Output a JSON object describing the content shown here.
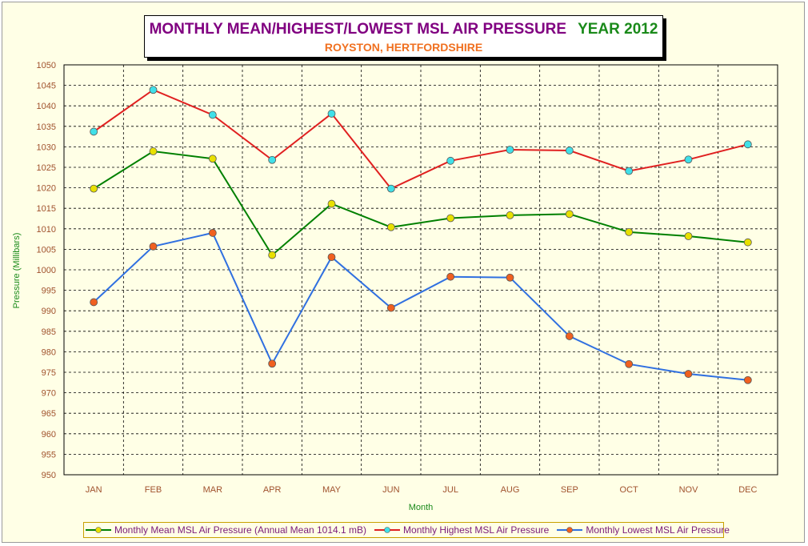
{
  "title": {
    "main": "MONTHLY MEAN/HIGHEST/LOWEST MSL AIR PRESSURE",
    "year": "YEAR 2012",
    "subtitle": "ROYSTON, HERTFORDSHIRE"
  },
  "colors": {
    "background": "#ffffe6",
    "grid": "#000000",
    "tick_label": "#a0522d",
    "axis_title": "#1a8a1a",
    "mean_line": "#008000",
    "highest_line": "#e02020",
    "lowest_line": "#3070e0",
    "mean_marker": "#e8e000",
    "highest_marker": "#40e0e8",
    "lowest_marker": "#f06020"
  },
  "chart_data": {
    "type": "line",
    "title": "MONTHLY MEAN/HIGHEST/LOWEST MSL AIR PRESSURE  YEAR 2012",
    "subtitle": "ROYSTON, HERTFORDSHIRE",
    "xlabel": "Month",
    "ylabel": "Pressure (Millibars)",
    "ylim": [
      950,
      1050
    ],
    "ytick_step": 5,
    "grid": true,
    "legend_position": "bottom",
    "categories": [
      "JAN",
      "FEB",
      "MAR",
      "APR",
      "MAY",
      "JUN",
      "JUL",
      "AUG",
      "SEP",
      "OCT",
      "NOV",
      "DEC"
    ],
    "series": [
      {
        "name": "Monthly Mean MSL Air Pressure (Annual Mean 1014.1 mB)",
        "values": [
          1019.8,
          1028.9,
          1027.1,
          1003.6,
          1016.1,
          1010.4,
          1012.6,
          1013.3,
          1013.6,
          1009.2,
          1008.2,
          1006.7
        ]
      },
      {
        "name": "Monthly Highest MSL Air Pressure",
        "values": [
          1033.7,
          1043.9,
          1037.8,
          1026.8,
          1038.1,
          1019.8,
          1026.6,
          1029.3,
          1029.1,
          1024.1,
          1026.9,
          1030.6
        ]
      },
      {
        "name": "Monthly Lowest  MSL Air Pressure",
        "values": [
          992.1,
          1005.7,
          1009.0,
          977.1,
          1003.1,
          990.7,
          998.3,
          998.1,
          983.8,
          977.0,
          974.6,
          973.1
        ]
      }
    ]
  }
}
